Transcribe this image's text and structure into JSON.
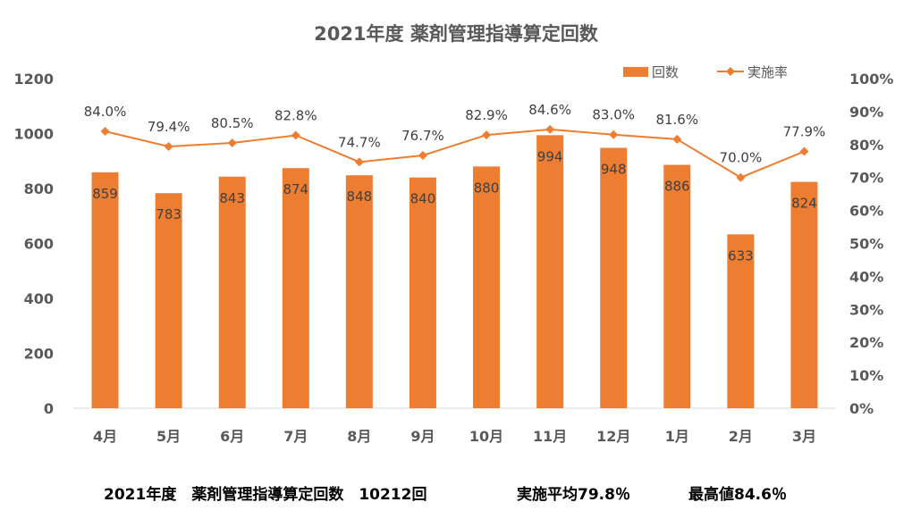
{
  "chart_data": {
    "type": "bar",
    "title": "2021年度 薬剤管理指導算定回数",
    "categories": [
      "4月",
      "5月",
      "6月",
      "7月",
      "8月",
      "9月",
      "10月",
      "11月",
      "12月",
      "1月",
      "2月",
      "3月"
    ],
    "series": [
      {
        "name": "回数",
        "type": "bar",
        "axis": "left",
        "values": [
          859,
          783,
          843,
          874,
          848,
          840,
          880,
          994,
          948,
          886,
          633,
          824
        ],
        "labels": [
          "859",
          "783",
          "843",
          "874",
          "848",
          "840",
          "880",
          "994",
          "948",
          "886",
          "633",
          "824"
        ]
      },
      {
        "name": "実施率",
        "type": "line",
        "axis": "right",
        "marker": "diamond",
        "values": [
          84.0,
          79.4,
          80.5,
          82.8,
          74.7,
          76.7,
          82.9,
          84.6,
          83.0,
          81.6,
          70.0,
          77.9
        ],
        "labels": [
          "84.0%",
          "79.4%",
          "80.5%",
          "82.8%",
          "74.7%",
          "76.7%",
          "82.9%",
          "84.6%",
          "83.0%",
          "81.6%",
          "70.0%",
          "77.9%"
        ]
      }
    ],
    "y_left": {
      "range": [
        0,
        1200
      ],
      "ticks": [
        "0",
        "200",
        "400",
        "600",
        "800",
        "1000",
        "1200"
      ]
    },
    "y_right": {
      "range": [
        0,
        100
      ],
      "ticks": [
        "0%",
        "10%",
        "20%",
        "30%",
        "40%",
        "50%",
        "60%",
        "70%",
        "80%",
        "90%",
        "100%"
      ]
    },
    "grid": false,
    "legend_position": "top-right",
    "colors": {
      "bar": "#ED7D31",
      "line": "#ED7D31",
      "axis_text": "#595959",
      "data_label": "#404040"
    }
  },
  "footer": {
    "total": "2021年度　薬剤管理指導算定回数　10212回",
    "average": "実施平均79.8％",
    "max": "最高値84.6％"
  }
}
